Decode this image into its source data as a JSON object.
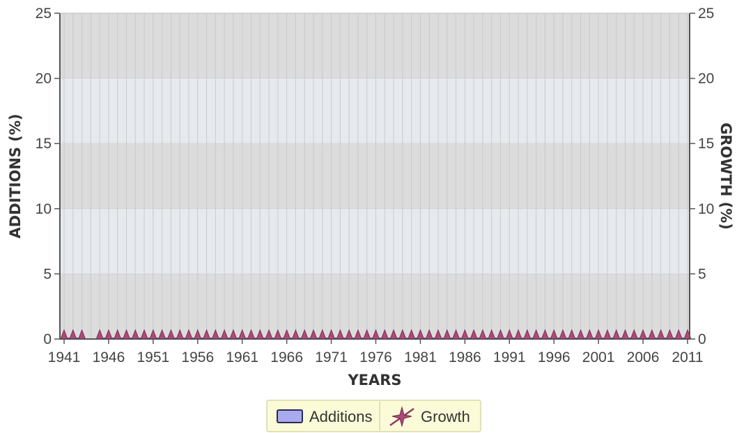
{
  "chart_data": {
    "type": "bar",
    "xlabel": "YEARS",
    "ylabel": "ADDITIONS (%)",
    "ylabel_right": "GROWTH (%)",
    "ylim": [
      0,
      25
    ],
    "y_ticks": [
      0,
      5,
      10,
      15,
      20,
      25
    ],
    "x_tick_labels": [
      "1941",
      "1946",
      "1951",
      "1956",
      "1961",
      "1966",
      "1971",
      "1976",
      "1981",
      "1986",
      "1991",
      "1996",
      "2001",
      "2006",
      "2011"
    ],
    "x_start": 1941,
    "x_end": 2011,
    "grid": true,
    "legend_position": "bottom-center",
    "series": [
      {
        "name": "Additions",
        "kind": "bar",
        "color": "#aaaaee",
        "values": []
      },
      {
        "name": "Growth",
        "kind": "line",
        "marker": "star",
        "color": "#8b3a62",
        "x": [
          1941,
          1942,
          1943,
          1945,
          1946,
          1947,
          1948,
          1949,
          1950,
          1951,
          1952,
          1953,
          1954,
          1955,
          1956,
          1957,
          1958,
          1959,
          1960,
          1961,
          1962,
          1963,
          1964,
          1965,
          1966,
          1967,
          1968,
          1969,
          1970,
          1971,
          1972,
          1973,
          1974,
          1975,
          1976,
          1977,
          1978,
          1979,
          1980,
          1981,
          1982,
          1983,
          1984,
          1985,
          1986,
          1987,
          1988,
          1989,
          1990,
          1991,
          1992,
          1993,
          1994,
          1995,
          1996,
          1997,
          1998,
          1999,
          2000,
          2001,
          2002,
          2003,
          2004,
          2005,
          2006,
          2007,
          2008,
          2009,
          2010,
          2011
        ],
        "values": [
          0,
          0,
          0,
          0,
          0,
          0,
          0,
          0,
          0,
          0,
          0,
          0,
          0,
          0,
          0,
          0,
          0,
          0,
          0,
          0,
          0,
          0,
          0,
          0,
          0,
          0,
          0,
          0,
          0,
          0,
          0,
          0,
          0,
          0,
          0,
          0,
          0,
          0,
          0,
          0,
          0,
          0,
          0,
          0,
          0,
          0,
          0,
          0,
          0,
          0,
          0,
          0,
          0,
          0,
          0,
          0,
          0,
          0,
          0,
          0,
          0,
          0,
          0,
          0,
          0,
          0,
          0,
          0,
          0,
          0
        ]
      }
    ],
    "colors": {
      "band_dark": "#dcdcdc",
      "band_light": "#e6eaee",
      "vertical_grid": "#c9c9c9",
      "axis": "#555555",
      "legend_bg": "#fbfbd8",
      "legend_border": "#d8d8a8"
    }
  }
}
